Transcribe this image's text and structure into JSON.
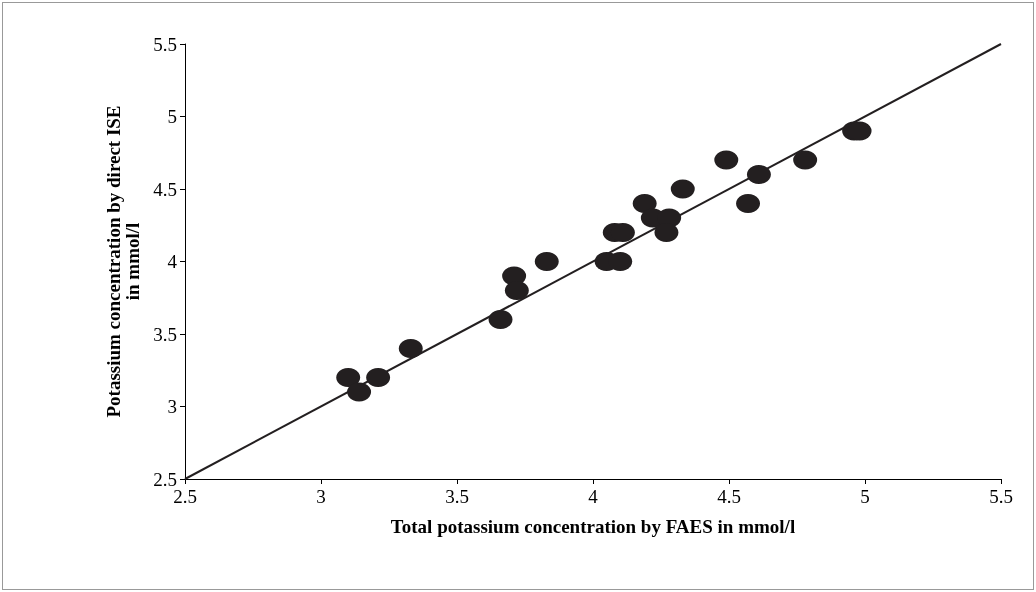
{
  "chart_data": {
    "type": "scatter",
    "xlabel": "Total potassium concentration by FAES in mmol/l",
    "ylabel": "Potassium concentration by direct ISE\nin mmol/l",
    "xlim": [
      2.5,
      5.5
    ],
    "xticks": [
      2.5,
      3,
      3.5,
      4,
      4.5,
      5,
      5.5
    ],
    "ylim": [
      2.5,
      5.5
    ],
    "yticks": [
      2.5,
      3,
      3.5,
      4,
      4.5,
      5,
      5.5
    ],
    "grid": false,
    "marker": "circle",
    "series": [
      {
        "color": "#231f20",
        "x": [
          3.1,
          3.14,
          3.21,
          3.33,
          3.66,
          3.71,
          3.72,
          3.83,
          4.05,
          4.1,
          4.08,
          4.11,
          4.19,
          4.22,
          4.28,
          4.27,
          4.33,
          4.49,
          4.57,
          4.61,
          4.78,
          4.96,
          4.98
        ],
        "values": [
          3.2,
          3.1,
          3.2,
          3.4,
          3.6,
          3.9,
          3.8,
          4.0,
          4.0,
          4.0,
          4.2,
          4.2,
          4.4,
          4.3,
          4.3,
          4.2,
          4.5,
          4.7,
          4.4,
          4.6,
          4.7,
          4.9,
          4.9
        ]
      },
      {
        "type": "line",
        "color": "#231f20",
        "marker": "none",
        "line_style": "solid",
        "x": [
          2.5,
          5.5
        ],
        "values": [
          2.5,
          5.5
        ]
      }
    ]
  }
}
